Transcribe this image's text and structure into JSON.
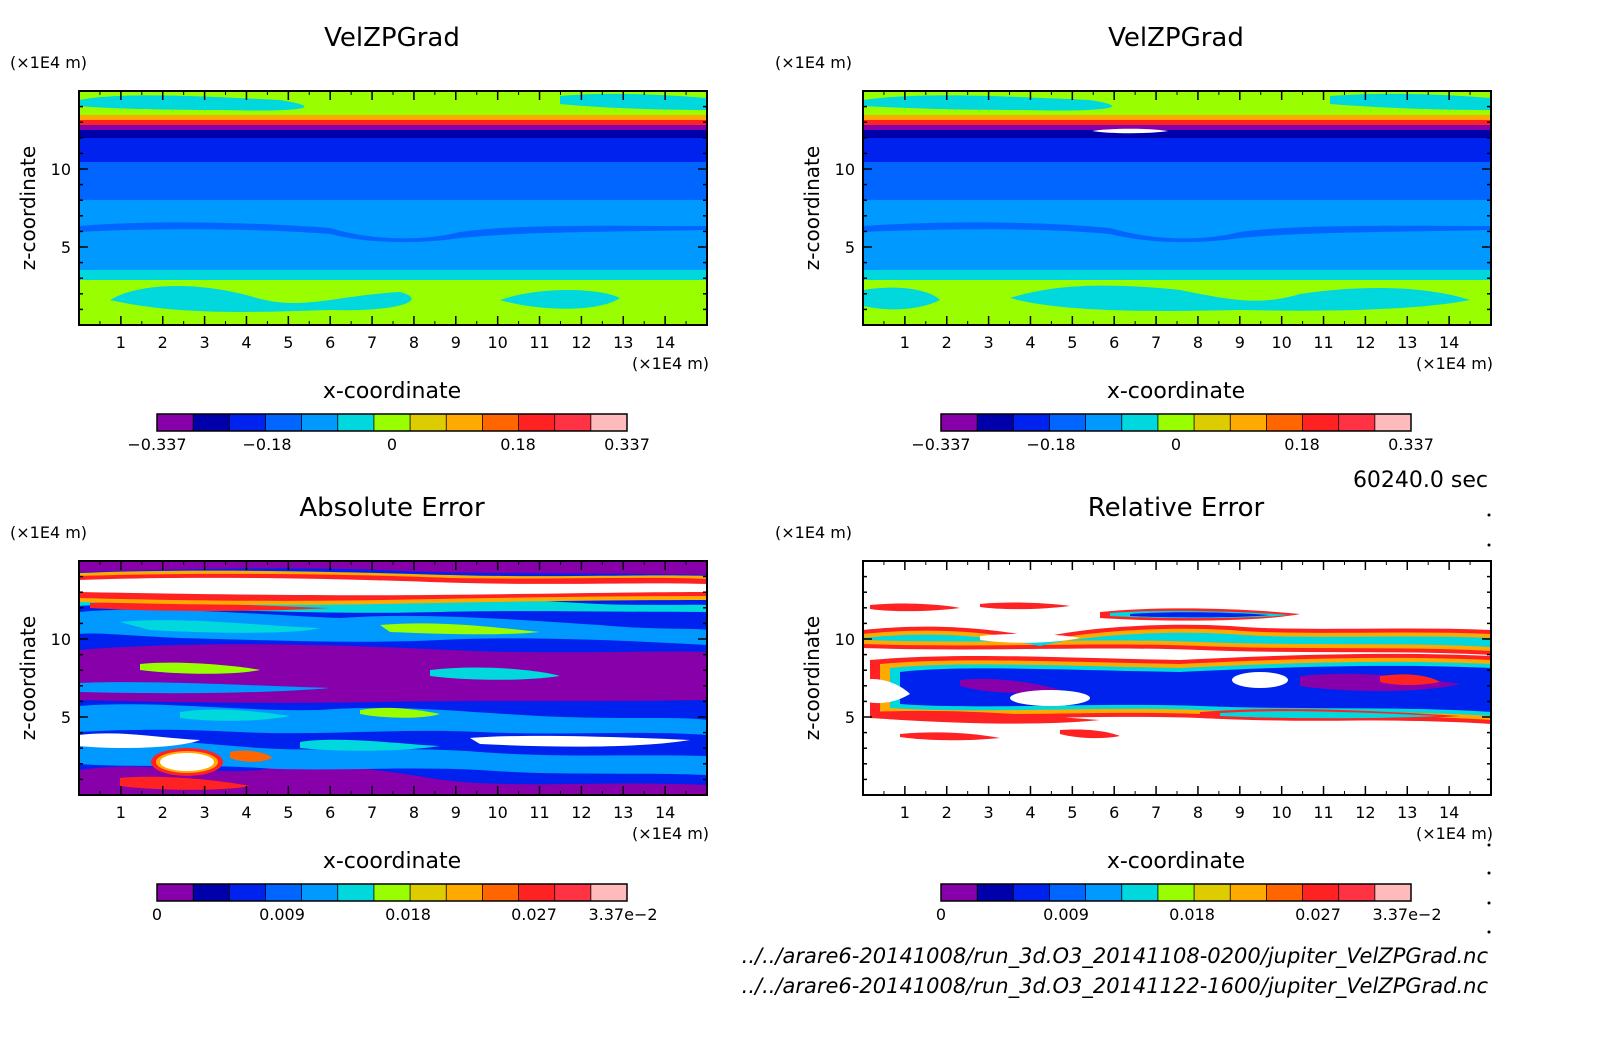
{
  "panels": [
    {
      "title": "VelZPGrad",
      "xlabel": "x-coordinate",
      "ylabel": "z-coordinate",
      "xunit": "(×1E4 m)",
      "yunit": "(×1E4 m)",
      "xticks": [
        "1",
        "2",
        "3",
        "4",
        "5",
        "6",
        "7",
        "8",
        "9",
        "10",
        "11",
        "12",
        "13",
        "14"
      ],
      "yticks": [
        "5",
        "10"
      ],
      "colorbar_labels": [
        "−0.337",
        "−0.18",
        "0",
        "0.18",
        "0.337"
      ]
    },
    {
      "title": "VelZPGrad",
      "xlabel": "x-coordinate",
      "ylabel": "z-coordinate",
      "xunit": "(×1E4 m)",
      "yunit": "(×1E4 m)",
      "xticks": [
        "1",
        "2",
        "3",
        "4",
        "5",
        "6",
        "7",
        "8",
        "9",
        "10",
        "11",
        "12",
        "13",
        "14"
      ],
      "yticks": [
        "5",
        "10"
      ],
      "colorbar_labels": [
        "−0.337",
        "−0.18",
        "0",
        "0.18",
        "0.337"
      ]
    },
    {
      "title": "Absolute Error",
      "xlabel": "x-coordinate",
      "ylabel": "z-coordinate",
      "xunit": "(×1E4 m)",
      "yunit": "(×1E4 m)",
      "xticks": [
        "1",
        "2",
        "3",
        "4",
        "5",
        "6",
        "7",
        "8",
        "9",
        "10",
        "11",
        "12",
        "13",
        "14"
      ],
      "yticks": [
        "5",
        "10"
      ],
      "colorbar_labels": [
        "0",
        "0.009",
        "0.018",
        "0.027",
        "3.37e−2"
      ]
    },
    {
      "title": "Relative Error",
      "xlabel": "x-coordinate",
      "ylabel": "z-coordinate",
      "xunit": "(×1E4 m)",
      "yunit": "(×1E4 m)",
      "xticks": [
        "1",
        "2",
        "3",
        "4",
        "5",
        "6",
        "7",
        "8",
        "9",
        "10",
        "11",
        "12",
        "13",
        "14"
      ],
      "yticks": [
        "5",
        "10"
      ],
      "colorbar_labels": [
        "0",
        "0.009",
        "0.018",
        "0.027",
        "3.37e−2"
      ]
    }
  ],
  "time_label": "60240.0 sec",
  "file_paths": [
    "../../arare6-20141008/run_3d.O3_20141108-0200/jupiter_VelZPGrad.nc",
    "../../arare6-20141008/run_3d.O3_20141122-1600/jupiter_VelZPGrad.nc"
  ],
  "palette": [
    "#8800aa",
    "#0000aa",
    "#0022ee",
    "#0066ff",
    "#0099ff",
    "#00d8dd",
    "#99ff00",
    "#ddcc00",
    "#ffaa00",
    "#ff6600",
    "#ff2222",
    "#ff3344",
    "#ffbbbb"
  ],
  "chart_data": [
    {
      "type": "heatmap",
      "title": "VelZPGrad",
      "xlabel": "x-coordinate",
      "ylabel": "z-coordinate",
      "xlim": [
        0,
        15
      ],
      "ylim": [
        0,
        15
      ],
      "color_range": [
        -0.337,
        0.337
      ],
      "colorbar_ticks": [
        -0.337,
        -0.18,
        0,
        0.18,
        0.337
      ],
      "bands_z_to_value": [
        {
          "z_range": [
            0,
            3
          ],
          "value": 0.06
        },
        {
          "z_range": [
            3,
            5.5
          ],
          "value": -0.05
        },
        {
          "z_range": [
            5.5,
            8
          ],
          "value": -0.09
        },
        {
          "z_range": [
            8,
            11
          ],
          "value": -0.14
        },
        {
          "z_range": [
            11,
            12.2
          ],
          "value": -0.2
        },
        {
          "z_range": [
            12.2,
            12.6
          ],
          "value": -0.3
        },
        {
          "z_range": [
            12.6,
            13.5
          ],
          "value": 0.12
        },
        {
          "z_range": [
            13.5,
            15
          ],
          "value": 0.03
        }
      ]
    },
    {
      "type": "heatmap",
      "title": "VelZPGrad",
      "xlabel": "x-coordinate",
      "ylabel": "z-coordinate",
      "xlim": [
        0,
        15
      ],
      "ylim": [
        0,
        15
      ],
      "color_range": [
        -0.337,
        0.337
      ],
      "colorbar_ticks": [
        -0.337,
        -0.18,
        0,
        0.18,
        0.337
      ],
      "bands_z_to_value": [
        {
          "z_range": [
            0,
            3
          ],
          "value": 0.06
        },
        {
          "z_range": [
            3,
            5.5
          ],
          "value": -0.05
        },
        {
          "z_range": [
            5.5,
            8
          ],
          "value": -0.09
        },
        {
          "z_range": [
            8,
            11
          ],
          "value": -0.14
        },
        {
          "z_range": [
            11,
            12.2
          ],
          "value": -0.2
        },
        {
          "z_range": [
            12.2,
            12.6
          ],
          "value": -0.3
        },
        {
          "z_range": [
            12.6,
            13.5
          ],
          "value": 0.12
        },
        {
          "z_range": [
            13.5,
            15
          ],
          "value": 0.03
        }
      ]
    },
    {
      "type": "heatmap",
      "title": "Absolute Error",
      "xlabel": "x-coordinate",
      "ylabel": "z-coordinate",
      "xlim": [
        0,
        15
      ],
      "ylim": [
        0,
        15
      ],
      "color_range": [
        0,
        0.0337
      ],
      "colorbar_ticks": [
        0,
        0.009,
        0.018,
        0.027,
        0.0337
      ]
    },
    {
      "type": "heatmap",
      "title": "Relative Error",
      "xlabel": "x-coordinate",
      "ylabel": "z-coordinate",
      "xlim": [
        0,
        15
      ],
      "ylim": [
        0,
        15
      ],
      "color_range": [
        0,
        0.0337
      ],
      "colorbar_ticks": [
        0,
        0.009,
        0.018,
        0.027,
        0.0337
      ]
    }
  ]
}
